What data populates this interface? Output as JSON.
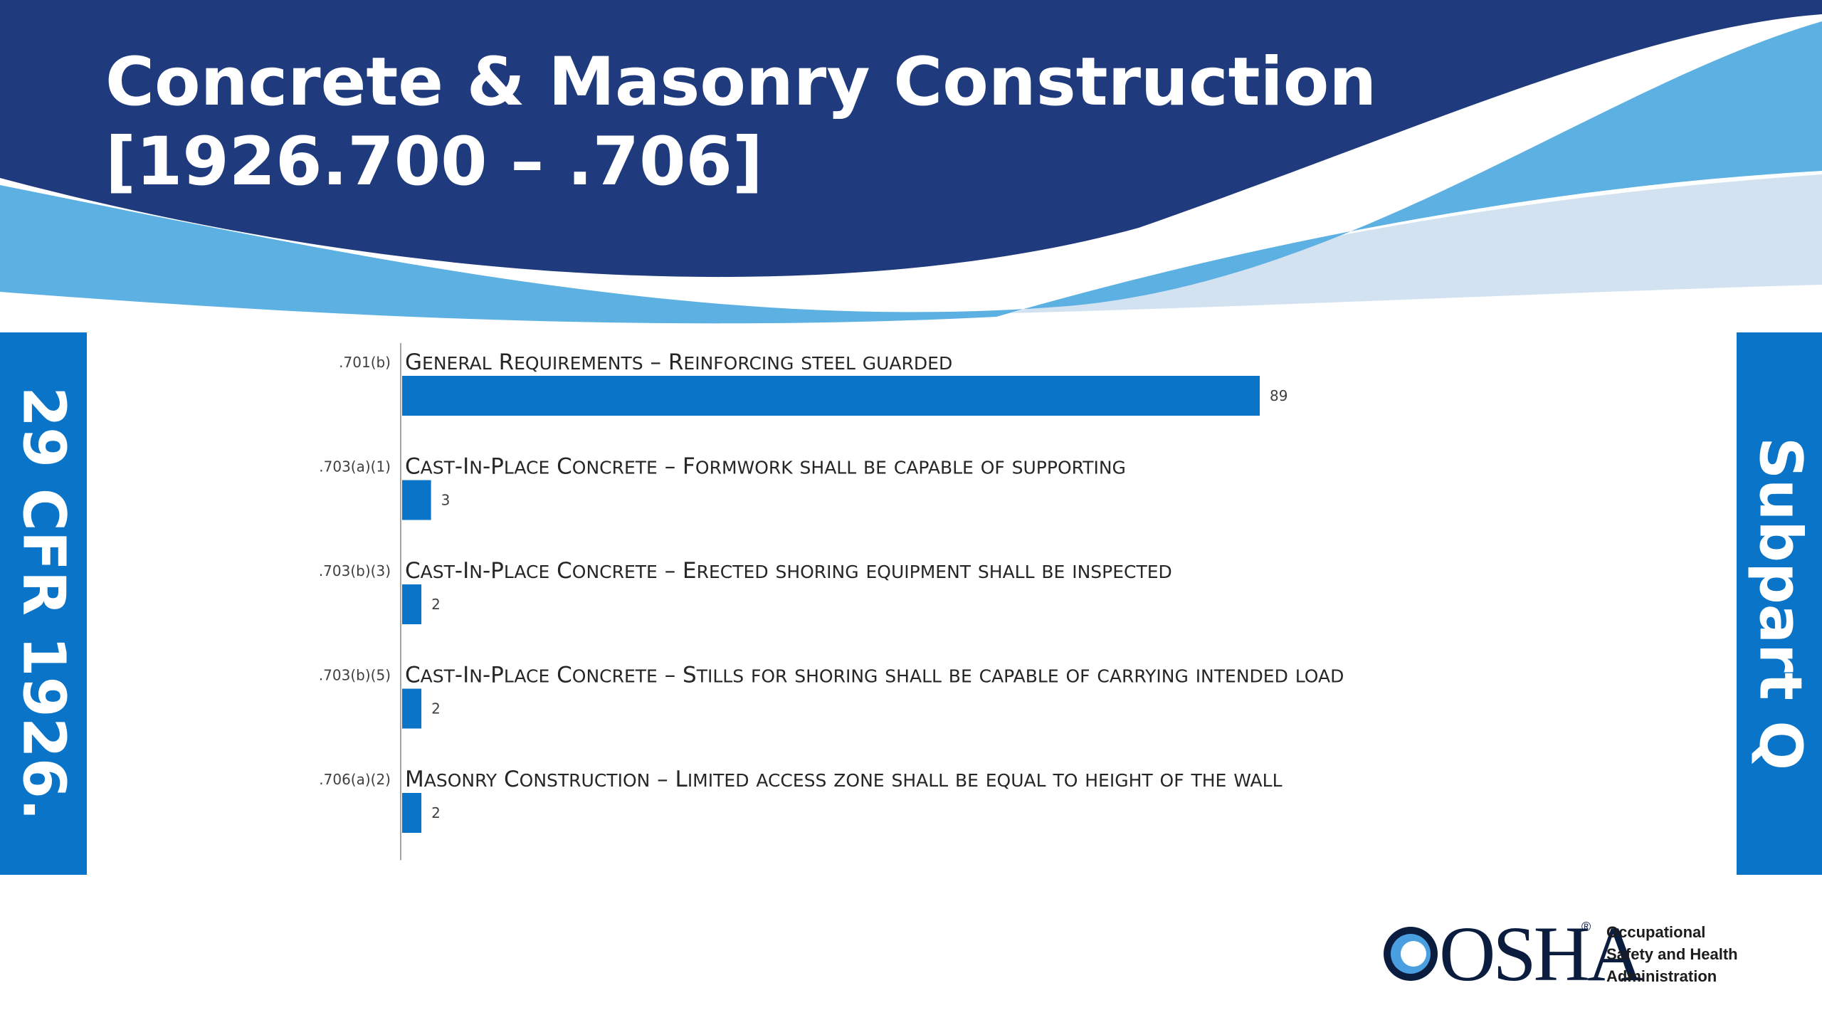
{
  "slide": {
    "title_line1": "Concrete & Masonry Construction",
    "title_line2": "[1926.700 – .706]",
    "left_tab": "29 CFR 1926.",
    "right_tab": "Subpart Q"
  },
  "colors": {
    "banner_dark": "#1f3a7d",
    "banner_light": "#5fb0e4",
    "banner_pale": "#cfe0f0",
    "bar": "#0a74c8",
    "tab": "#0a74c8"
  },
  "logo": {
    "wordmark": "OSHA",
    "registered": "®",
    "agency_lines": [
      "Occupational",
      "Safety and Health",
      "Administration"
    ]
  },
  "chart_data": {
    "type": "bar",
    "orientation": "horizontal",
    "categories": [
      {
        "code": ".701(b)",
        "label": "General Requirements – Reinforcing steel guarded"
      },
      {
        "code": ".703(a)(1)",
        "label": "Cast-In-Place Concrete – Formwork shall be capable of supporting"
      },
      {
        "code": ".703(b)(3)",
        "label": "Cast-In-Place Concrete – Erected shoring equipment shall be inspected"
      },
      {
        "code": ".703(b)(5)",
        "label": "Cast-In-Place Concrete – Stills for shoring shall be capable of carrying intended load"
      },
      {
        "code": ".706(a)(2)",
        "label": "Masonry Construction – Limited access zone shall be equal to height of the wall"
      }
    ],
    "values": [
      89,
      3,
      2,
      2,
      2
    ],
    "data_labels": [
      "89",
      "3",
      "2",
      "2",
      "2"
    ],
    "title": "",
    "xlabel": "",
    "ylabel": "",
    "xlim": [
      0,
      89
    ],
    "grid": false,
    "legend": "none"
  }
}
